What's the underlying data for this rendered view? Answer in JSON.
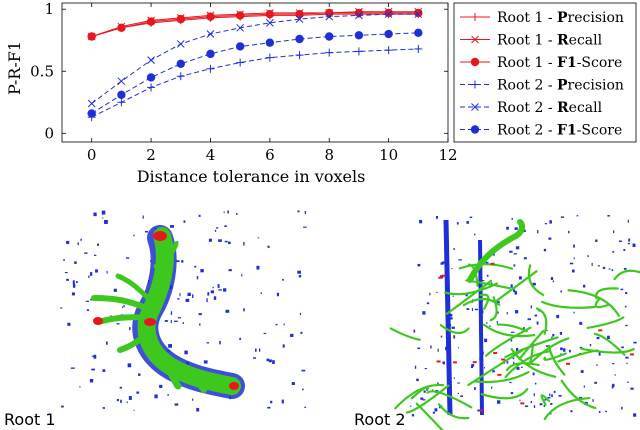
{
  "chart_data": {
    "type": "line",
    "xlabel": "Distance tolerance in voxels",
    "ylabel": "P-R-F1",
    "xlim": [
      -1,
      12
    ],
    "ylim": [
      -0.07,
      1.05
    ],
    "xticks": [
      0,
      2,
      4,
      6,
      8,
      10,
      12
    ],
    "yticks": [
      0,
      0.5,
      1
    ],
    "ytick_labels": [
      "0",
      "0.5",
      "1"
    ],
    "grid": false,
    "legend_position": "right",
    "x": [
      0,
      1,
      2,
      3,
      4,
      5,
      6,
      7,
      8,
      9,
      10,
      11
    ],
    "series": [
      {
        "name": "Root 1 - Precision",
        "name_bold": "P",
        "name_prefix": "Root 1 - ",
        "name_rest": "recision",
        "color": "#e8171d",
        "dash": "solid",
        "marker": "plus",
        "values": [
          0.78,
          0.85,
          0.89,
          0.91,
          0.93,
          0.94,
          0.95,
          0.95,
          0.96,
          0.96,
          0.96,
          0.96
        ]
      },
      {
        "name": "Root 1 - Recall",
        "name_bold": "R",
        "name_prefix": "Root 1 - ",
        "name_rest": "ecall",
        "color": "#e8171d",
        "dash": "solid",
        "marker": "x",
        "values": [
          0.78,
          0.86,
          0.91,
          0.93,
          0.95,
          0.96,
          0.97,
          0.97,
          0.97,
          0.98,
          0.98,
          0.98
        ]
      },
      {
        "name": "Root 1 - F1-Score",
        "name_bold": "F1",
        "name_prefix": "Root 1 - ",
        "name_rest": "-Score",
        "color": "#e8171d",
        "dash": "solid",
        "marker": "dot",
        "values": [
          0.78,
          0.85,
          0.9,
          0.92,
          0.94,
          0.95,
          0.96,
          0.96,
          0.97,
          0.97,
          0.97,
          0.97
        ]
      },
      {
        "name": "Root 2 - Precision",
        "name_bold": "P",
        "name_prefix": "Root 2 - ",
        "name_rest": "recision",
        "color": "#1f2fd6",
        "dash": "dashed",
        "marker": "plus",
        "values": [
          0.13,
          0.25,
          0.37,
          0.46,
          0.52,
          0.57,
          0.61,
          0.63,
          0.65,
          0.66,
          0.67,
          0.68
        ]
      },
      {
        "name": "Root 2 - Recall",
        "name_bold": "R",
        "name_prefix": "Root 2 - ",
        "name_rest": "ecall",
        "color": "#1f2fd6",
        "dash": "dashed",
        "marker": "x",
        "values": [
          0.24,
          0.42,
          0.59,
          0.72,
          0.8,
          0.85,
          0.89,
          0.92,
          0.94,
          0.95,
          0.96,
          0.96
        ]
      },
      {
        "name": "Root 2 - F1-Score",
        "name_bold": "F1",
        "name_prefix": "Root 2 - ",
        "name_rest": "-Score",
        "color": "#1f2fd6",
        "dash": "dashed",
        "marker": "dot",
        "values": [
          0.16,
          0.31,
          0.45,
          0.56,
          0.64,
          0.7,
          0.73,
          0.76,
          0.78,
          0.79,
          0.8,
          0.81
        ]
      }
    ]
  },
  "panels": [
    {
      "label": "Root 1"
    },
    {
      "label": "Root 2"
    }
  ],
  "colors": {
    "red": "#e8171d",
    "blue": "#1f2fd6",
    "green": "#3ec81e",
    "dark_green": "#1e7a12"
  }
}
